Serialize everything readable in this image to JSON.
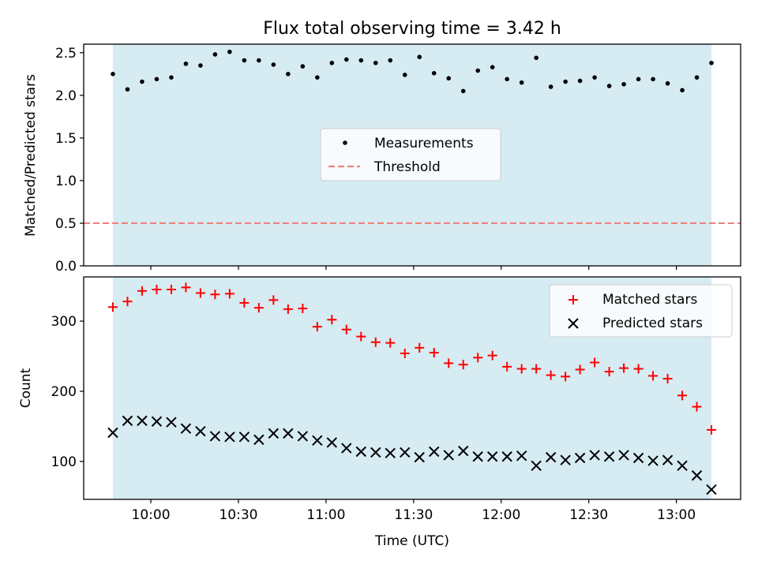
{
  "colors": {
    "shade": "#add8e6",
    "threshold": "#f08080",
    "matched": "#ff0000",
    "predicted": "#000000",
    "measurement": "#000000"
  },
  "chart_data": [
    {
      "type": "scatter",
      "title": "Flux total observing time = 3.42 h",
      "ylabel": "Matched/Predicted stars",
      "xlabel": "",
      "ylim": [
        0,
        2.6
      ],
      "yticks": [
        0.0,
        0.5,
        1.0,
        1.5,
        2.0,
        2.5
      ],
      "ytick_labels": [
        "0.0",
        "0.5",
        "1.0",
        "1.5",
        "2.0",
        "2.5"
      ],
      "xlim": [
        "09:37",
        "13:22"
      ],
      "xticks": [
        "10:00",
        "10:30",
        "11:00",
        "11:30",
        "12:00",
        "12:30",
        "13:00"
      ],
      "shaded_span": [
        "09:47",
        "13:12"
      ],
      "legend_position": "center",
      "legend": [
        "Measurements",
        "Threshold"
      ],
      "threshold": 0.5,
      "x": [
        "09:47",
        "09:52",
        "09:57",
        "10:02",
        "10:07",
        "10:12",
        "10:17",
        "10:22",
        "10:27",
        "10:32",
        "10:37",
        "10:42",
        "10:47",
        "10:52",
        "10:57",
        "11:02",
        "11:07",
        "11:12",
        "11:17",
        "11:22",
        "11:27",
        "11:32",
        "11:37",
        "11:42",
        "11:47",
        "11:52",
        "11:57",
        "12:02",
        "12:07",
        "12:12",
        "12:17",
        "12:22",
        "12:27",
        "12:32",
        "12:37",
        "12:42",
        "12:47",
        "12:52",
        "12:57",
        "13:02",
        "13:07",
        "13:12"
      ],
      "series": [
        {
          "name": "Measurements",
          "values": [
            2.25,
            2.07,
            2.16,
            2.19,
            2.21,
            2.37,
            2.35,
            2.48,
            2.51,
            2.41,
            2.41,
            2.36,
            2.25,
            2.34,
            2.21,
            2.38,
            2.42,
            2.41,
            2.38,
            2.41,
            2.24,
            2.45,
            2.26,
            2.2,
            2.05,
            2.29,
            2.33,
            2.19,
            2.15,
            2.44,
            2.1,
            2.16,
            2.17,
            2.21,
            2.11,
            2.13,
            2.19,
            2.19,
            2.14,
            2.06,
            2.21,
            2.38
          ]
        }
      ]
    },
    {
      "type": "scatter",
      "title": "",
      "ylabel": "Count",
      "xlabel": "Time (UTC)",
      "ylim": [
        46,
        363
      ],
      "yticks": [
        100,
        200,
        300
      ],
      "ytick_labels": [
        "100",
        "200",
        "300"
      ],
      "xlim": [
        "09:37",
        "13:22"
      ],
      "xticks": [
        "10:00",
        "10:30",
        "11:00",
        "11:30",
        "12:00",
        "12:30",
        "13:00"
      ],
      "xtick_labels": [
        "10:00",
        "10:30",
        "11:00",
        "11:30",
        "12:00",
        "12:30",
        "13:00"
      ],
      "shaded_span": [
        "09:47",
        "13:12"
      ],
      "legend_position": "top-right",
      "legend": [
        "Matched stars",
        "Predicted stars"
      ],
      "x": [
        "09:47",
        "09:52",
        "09:57",
        "10:02",
        "10:07",
        "10:12",
        "10:17",
        "10:22",
        "10:27",
        "10:32",
        "10:37",
        "10:42",
        "10:47",
        "10:52",
        "10:57",
        "11:02",
        "11:07",
        "11:12",
        "11:17",
        "11:22",
        "11:27",
        "11:32",
        "11:37",
        "11:42",
        "11:47",
        "11:52",
        "11:57",
        "12:02",
        "12:07",
        "12:12",
        "12:17",
        "12:22",
        "12:27",
        "12:32",
        "12:37",
        "12:42",
        "12:47",
        "12:52",
        "12:57",
        "13:02",
        "13:07",
        "13:12"
      ],
      "series": [
        {
          "name": "Matched stars",
          "values": [
            320,
            328,
            343,
            345,
            345,
            348,
            340,
            338,
            339,
            326,
            319,
            330,
            317,
            318,
            292,
            302,
            288,
            278,
            270,
            269,
            254,
            262,
            255,
            240,
            238,
            248,
            251,
            235,
            232,
            232,
            223,
            221,
            231,
            241,
            228,
            233,
            232,
            222,
            218,
            194,
            178,
            145
          ]
        },
        {
          "name": "Predicted stars",
          "values": [
            141,
            158,
            158,
            157,
            156,
            147,
            143,
            136,
            135,
            135,
            131,
            140,
            140,
            136,
            130,
            127,
            119,
            114,
            113,
            112,
            113,
            106,
            114,
            109,
            115,
            107,
            107,
            107,
            108,
            94,
            106,
            102,
            105,
            109,
            107,
            109,
            105,
            101,
            102,
            94,
            80,
            60
          ]
        }
      ]
    }
  ]
}
